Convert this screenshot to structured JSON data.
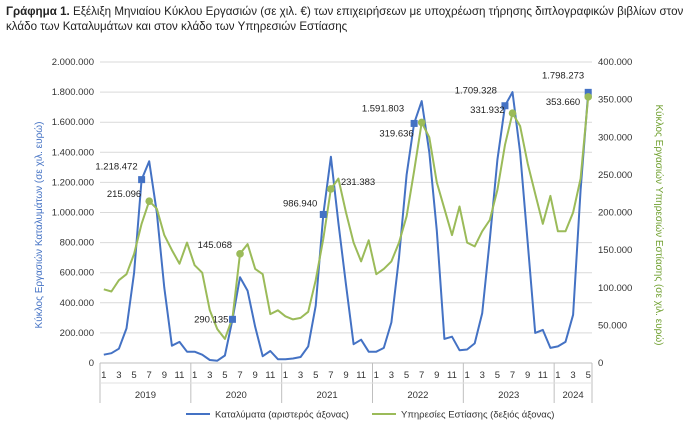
{
  "caption": {
    "label": "Γράφημα 1.",
    "text": "Εξέλιξη Μηνιαίου Κύκλου Εργασιών (σε χιλ. €) των επιχειρήσεων με υποχρέωση τήρησης διπλογραφικών βιβλίων στον κλάδο των Καταλυμάτων και στον κλάδο των Υπηρεσιών Εστίασης"
  },
  "chart_data": {
    "type": "line",
    "ylabel_left": "Κύκλος Εργασιών Καταλυμάτων (σε χιλ. ευρώ)",
    "ylabel_right": "Κύκλος Εργασιών Υπηρεσιών Εστίασης (σε χιλ. ευρώ)",
    "ylim_left": [
      0,
      2000000
    ],
    "ylim_right": [
      0,
      400000
    ],
    "yticks_left": [
      "0",
      "200.000",
      "400.000",
      "600.000",
      "800.000",
      "1.000.000",
      "1.200.000",
      "1.400.000",
      "1.600.000",
      "1.800.000",
      "2.000.000"
    ],
    "yticks_right": [
      "0",
      "50.000",
      "100.000",
      "150.000",
      "200.000",
      "250.000",
      "300.000",
      "350.000",
      "400.000"
    ],
    "month_ticks": [
      "1",
      "3",
      "5",
      "7",
      "9",
      "11"
    ],
    "years": [
      "2019",
      "2020",
      "2021",
      "2022",
      "2023",
      "2024"
    ],
    "grid": true,
    "legend_position": "bottom",
    "series": [
      {
        "name": "Καταλύματα (αριστερός άξονας)",
        "axis": "left",
        "color": "#4472c4",
        "values": [
          55000,
          65000,
          95000,
          230000,
          600000,
          1218472,
          1340000,
          1000000,
          500000,
          115000,
          140000,
          75000,
          75000,
          55000,
          20000,
          15000,
          50000,
          290135,
          570000,
          480000,
          240000,
          45000,
          80000,
          25000,
          25000,
          30000,
          40000,
          110000,
          380000,
          986940,
          1370000,
          930000,
          520000,
          125000,
          155000,
          75000,
          75000,
          100000,
          270000,
          700000,
          1250000,
          1591803,
          1740000,
          1400000,
          880000,
          160000,
          175000,
          85000,
          90000,
          130000,
          330000,
          820000,
          1350000,
          1709328,
          1800000,
          1400000,
          800000,
          200000,
          220000,
          100000,
          110000,
          140000,
          320000,
          1150000,
          1798273
        ]
      },
      {
        "name": "Υπηρεσίες Εστίασης (δεξιός άξονας)",
        "axis": "right",
        "color": "#9bbb59",
        "values": [
          98000,
          95000,
          110000,
          118000,
          145000,
          185000,
          215096,
          205000,
          170000,
          150000,
          132000,
          160000,
          130000,
          120000,
          70000,
          45000,
          32000,
          60000,
          145068,
          158000,
          125000,
          118000,
          65000,
          70000,
          62000,
          58000,
          60000,
          68000,
          110000,
          165000,
          231383,
          245000,
          200000,
          160000,
          135000,
          163000,
          118000,
          125000,
          135000,
          160000,
          195000,
          255000,
          319636,
          300000,
          240000,
          205000,
          170000,
          208000,
          160000,
          155000,
          175000,
          190000,
          230000,
          290000,
          331932,
          315000,
          265000,
          225000,
          185000,
          222000,
          175000,
          175000,
          200000,
          245000,
          353660
        ]
      }
    ],
    "annotations": [
      {
        "series": 0,
        "index": 5,
        "text": "1.218.472"
      },
      {
        "series": 0,
        "index": 17,
        "text": "290.135"
      },
      {
        "series": 0,
        "index": 29,
        "text": "986.940"
      },
      {
        "series": 0,
        "index": 41,
        "text": "1.591.803"
      },
      {
        "series": 0,
        "index": 53,
        "text": "1.709.328"
      },
      {
        "series": 0,
        "index": 64,
        "text": "1.798.273"
      },
      {
        "series": 1,
        "index": 6,
        "text": "215.096"
      },
      {
        "series": 1,
        "index": 18,
        "text": "145.068"
      },
      {
        "series": 1,
        "index": 30,
        "text": "231.383"
      },
      {
        "series": 1,
        "index": 42,
        "text": "319.636"
      },
      {
        "series": 1,
        "index": 54,
        "text": "331.932"
      },
      {
        "series": 1,
        "index": 64,
        "text": "353.660"
      }
    ]
  }
}
